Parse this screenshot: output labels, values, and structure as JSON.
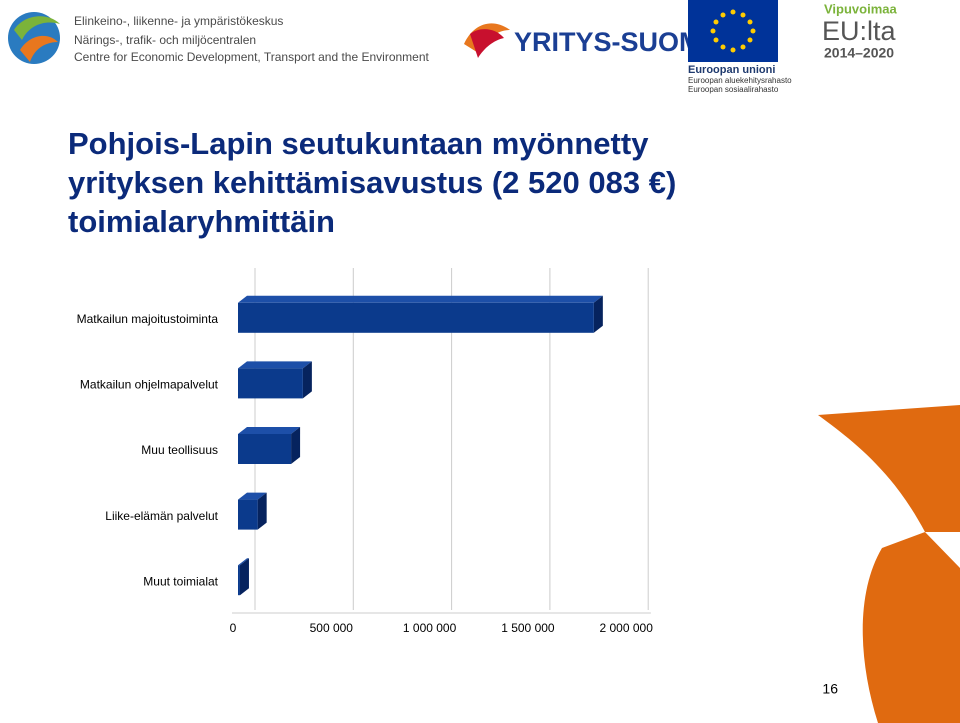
{
  "header": {
    "ely_lines": [
      "Elinkeino-, liikenne- ja ympäristökeskus",
      "Närings-, trafik- och miljöcentralen",
      "Centre for Economic Development, Transport and the Environment"
    ],
    "yritys_suomi": "YRITYS-SUOMI",
    "eu_lines": [
      "Euroopan unioni",
      "Euroopan aluekehitysrahasto",
      "Euroopan sosiaalirahasto"
    ],
    "vipuvoimaa": "Vipuvoimaa",
    "eulta": "EU:lta",
    "years": "2014–2020"
  },
  "chart_data": {
    "type": "barh",
    "title": "Pohjois-Lapin seutukuntaan myönnetty yrityksen kehittämisavustus (2 520 083 €) toimialaryhmittäin",
    "categories": [
      "Matkailun majoitustoiminta",
      "Matkailun ohjelmapalvelut",
      "Muu teollisuus",
      "Liike-elämän palvelut",
      "Muut toimialat"
    ],
    "values": [
      1810000,
      330000,
      270000,
      100000,
      10000
    ],
    "color": "#0b3a8c",
    "xlim": [
      0,
      2100000
    ],
    "xticks": [
      0,
      {
        "value": 500000,
        "label": "500 000"
      },
      {
        "value": 1000000,
        "label": "1 000 000"
      },
      {
        "value": 1500000,
        "label": "1 500 000"
      },
      {
        "value": 2000000,
        "label": "2 000 000"
      }
    ],
    "grid": true
  },
  "page_number": "16"
}
